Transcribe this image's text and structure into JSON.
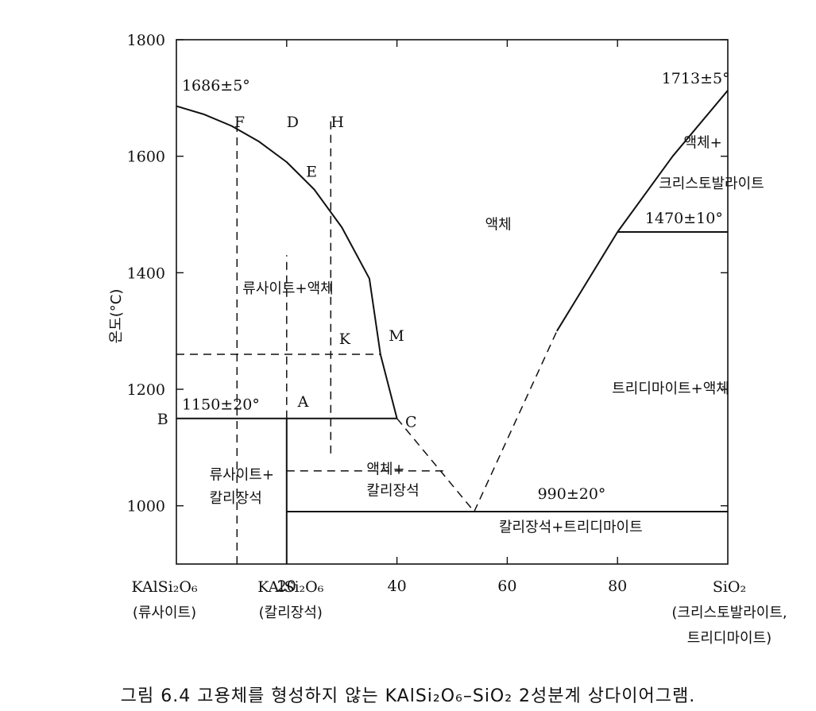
{
  "chart_data": {
    "type": "line",
    "title": "",
    "ylabel": "온도(°C)",
    "xlim": [
      0,
      100
    ],
    "ylim": [
      900,
      1800
    ],
    "x_ticks": [
      20,
      40,
      60,
      80
    ],
    "y_ticks": [
      1000,
      1200,
      1400,
      1600,
      1800
    ],
    "x_end_labels": {
      "left": [
        "KAlSi₂O₆",
        "(류사이트)"
      ],
      "mid": [
        "KAlSi₂O₆",
        "(칼리장석)"
      ],
      "right": [
        "SiO₂",
        "(크리스토발라이트,",
        "트리디마이트)"
      ]
    },
    "series": [
      {
        "style": "solid",
        "points": [
          [
            0,
            1686
          ],
          [
            5,
            1672
          ],
          [
            10,
            1652
          ],
          [
            15,
            1625
          ],
          [
            20,
            1590
          ],
          [
            25,
            1543
          ],
          [
            30,
            1478
          ],
          [
            35,
            1390
          ],
          [
            37,
            1260
          ],
          [
            40,
            1150
          ]
        ]
      },
      {
        "style": "solid",
        "points": [
          [
            0,
            1150
          ],
          [
            40,
            1150
          ]
        ]
      },
      {
        "style": "solid",
        "points": [
          [
            20,
            900
          ],
          [
            20,
            1150
          ]
        ]
      },
      {
        "style": "solid",
        "points": [
          [
            20,
            990
          ],
          [
            100,
            990
          ]
        ]
      },
      {
        "style": "dashed",
        "points": [
          [
            40,
            1150
          ],
          [
            54,
            990
          ]
        ]
      },
      {
        "style": "dashed",
        "points": [
          [
            54,
            990
          ],
          [
            69,
            1300
          ]
        ]
      },
      {
        "style": "solid",
        "points": [
          [
            69,
            1300
          ],
          [
            80,
            1470
          ]
        ]
      },
      {
        "style": "solid",
        "points": [
          [
            80,
            1470
          ],
          [
            90,
            1600
          ],
          [
            100,
            1713
          ]
        ]
      },
      {
        "style": "solid",
        "points": [
          [
            80,
            1470
          ],
          [
            100,
            1470
          ]
        ]
      },
      {
        "style": "dashed",
        "points": [
          [
            11,
            900
          ],
          [
            11,
            1665
          ]
        ]
      },
      {
        "style": "dashed",
        "points": [
          [
            28,
            1090
          ],
          [
            28,
            1665
          ]
        ]
      },
      {
        "style": "dashed",
        "points": [
          [
            20,
            1150
          ],
          [
            20,
            1430
          ]
        ]
      },
      {
        "style": "dashed",
        "points": [
          [
            0,
            1260
          ],
          [
            37,
            1260
          ]
        ]
      },
      {
        "style": "dashed",
        "points": [
          [
            20,
            1060
          ],
          [
            49,
            1060
          ]
        ]
      }
    ],
    "annotations": [
      {
        "text": "1686±5°",
        "x": 1,
        "y": 1713
      },
      {
        "text": "1713±5°",
        "x": 88,
        "y": 1725
      },
      {
        "text": "F",
        "x": 10.5,
        "y": 1650
      },
      {
        "text": "D",
        "x": 20,
        "y": 1650
      },
      {
        "text": "H",
        "x": 28,
        "y": 1650
      },
      {
        "text": "E",
        "x": 23.5,
        "y": 1565
      },
      {
        "text": "액체",
        "x": 56,
        "y": 1475
      },
      {
        "text": "액체+",
        "x": 92,
        "y": 1615
      },
      {
        "text": "크리스토발라이트",
        "x": 87.5,
        "y": 1545
      },
      {
        "text": "1470±10°",
        "x": 85,
        "y": 1485
      },
      {
        "text": "류사이트+액체",
        "x": 12,
        "y": 1365
      },
      {
        "text": "K",
        "x": 29.5,
        "y": 1278
      },
      {
        "text": "M",
        "x": 38.5,
        "y": 1283
      },
      {
        "text": "1150±20°",
        "x": 1,
        "y": 1165
      },
      {
        "text": "A",
        "x": 22,
        "y": 1170
      },
      {
        "text": "B",
        "x": -3.5,
        "y": 1140
      },
      {
        "text": "C",
        "x": 41.5,
        "y": 1135
      },
      {
        "text": "트리디마이트+액체",
        "x": 79,
        "y": 1193
      },
      {
        "text": "류사이트+",
        "x": 6,
        "y": 1045
      },
      {
        "text": "칼리장석",
        "x": 6,
        "y": 1005
      },
      {
        "text": "액체+",
        "x": 34.5,
        "y": 1055
      },
      {
        "text": "칼리장석",
        "x": 34.5,
        "y": 1018
      },
      {
        "text": "990±20°",
        "x": 65.5,
        "y": 1012
      },
      {
        "text": "칼리장석+트리디마이트",
        "x": 58.5,
        "y": 955
      }
    ]
  },
  "caption": "그림 6.4  고용체를 형성하지 않는 KAlSi₂O₆–SiO₂ 2성분계 상다이어그램."
}
